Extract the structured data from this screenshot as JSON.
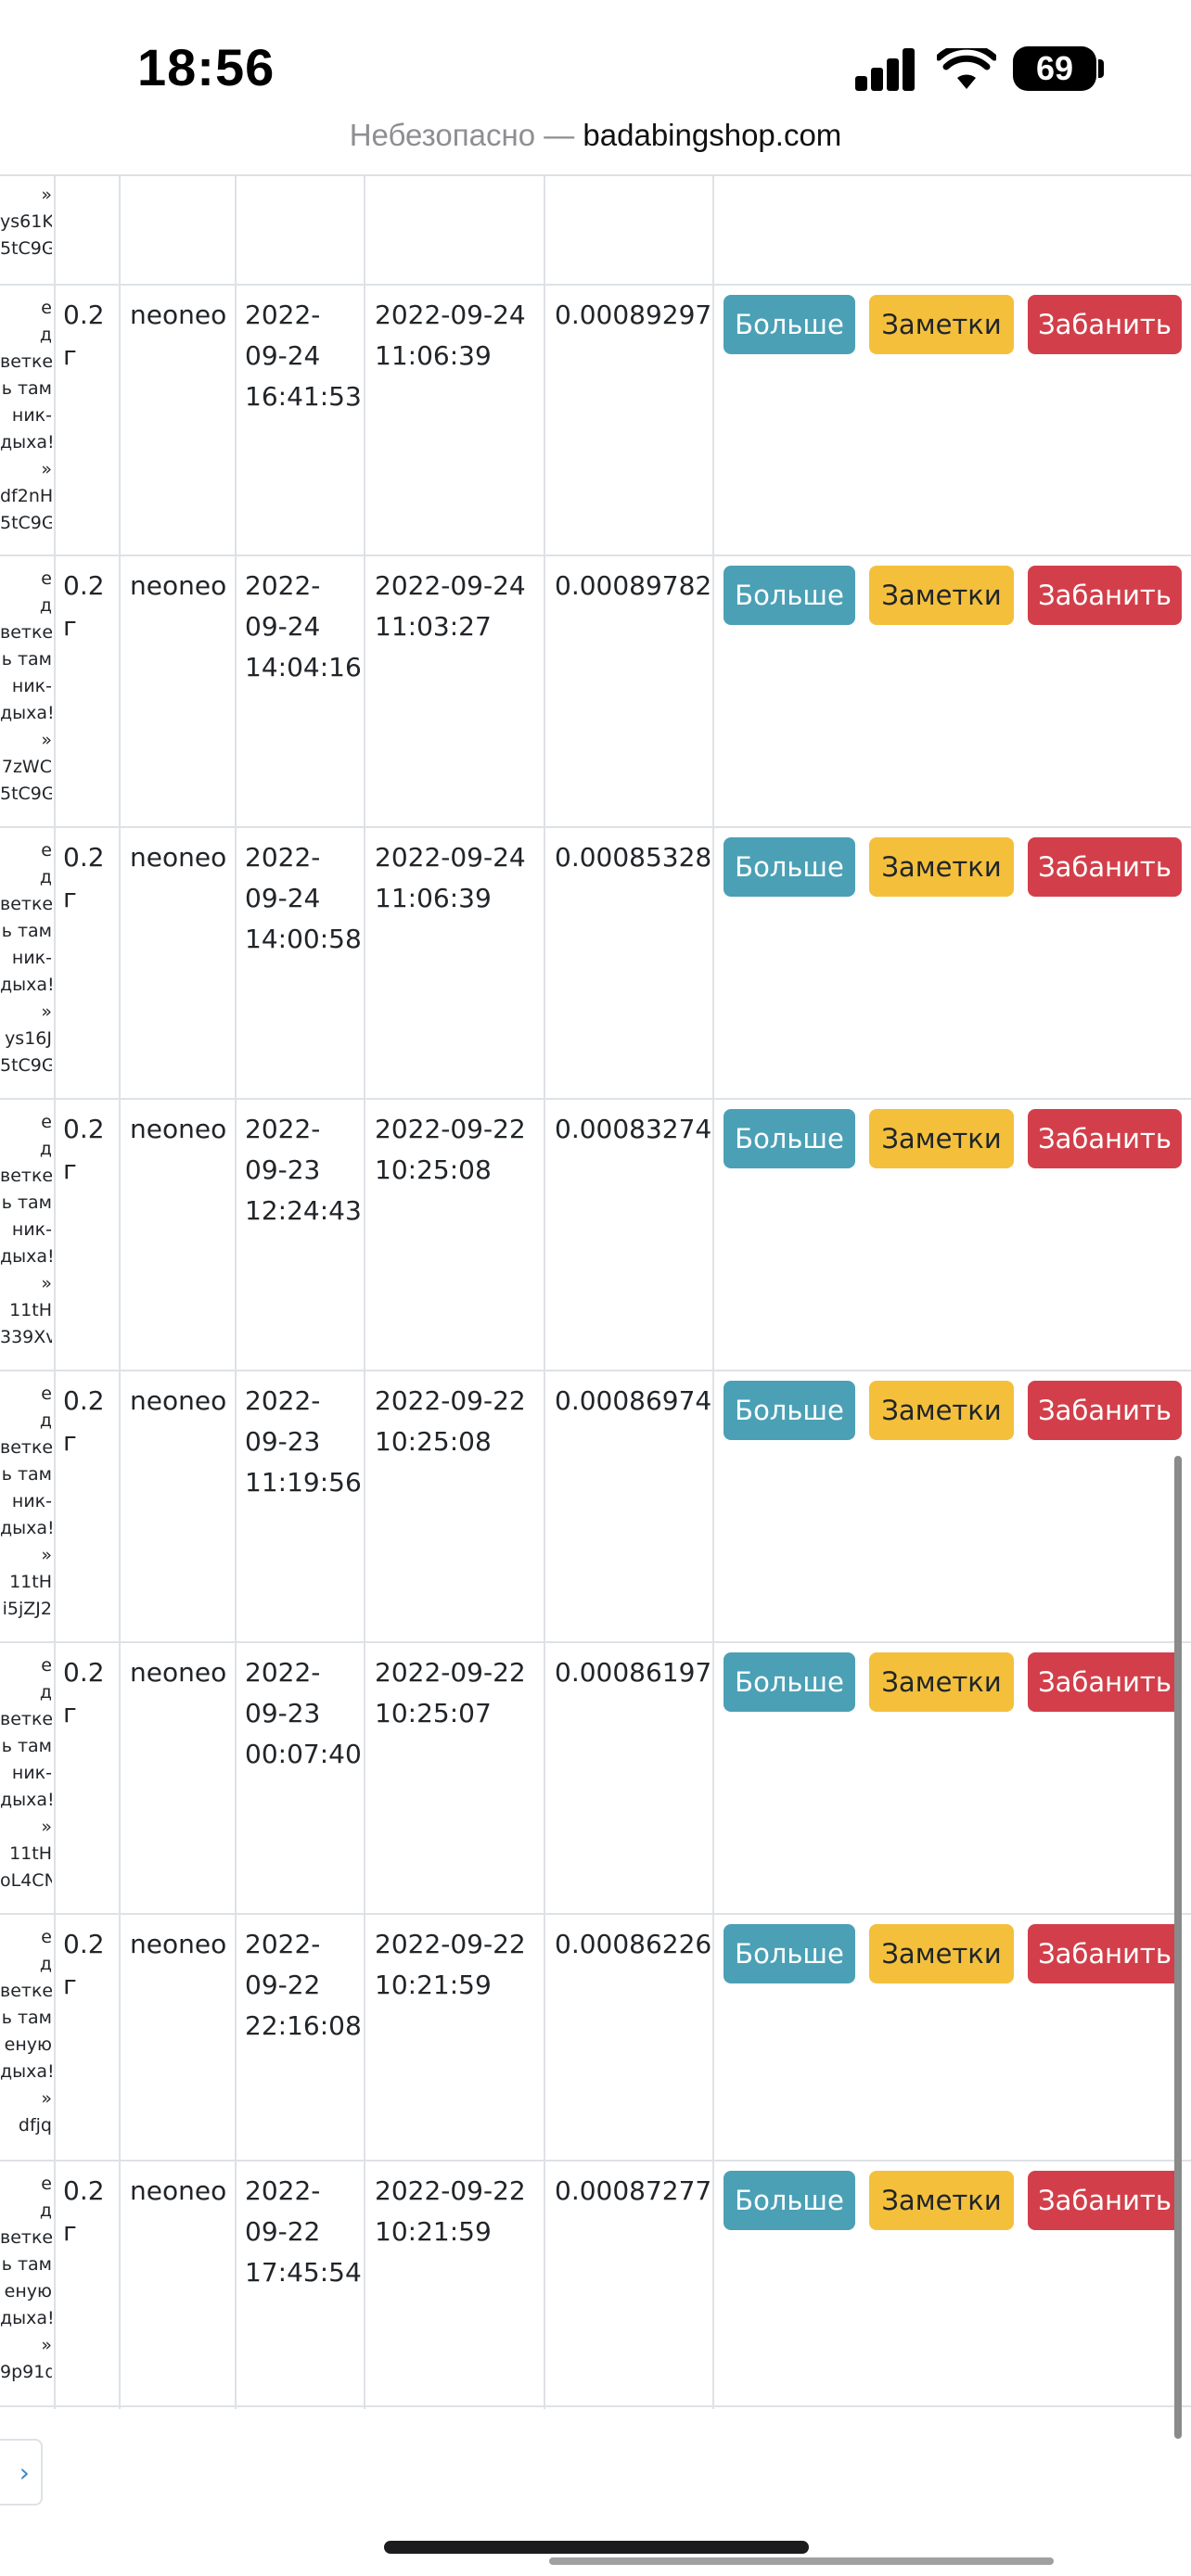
{
  "status": {
    "time": "18:56",
    "battery": "69"
  },
  "urlbar": {
    "insecure_label": "Небезопасно —",
    "host": "badabingshop.com"
  },
  "buttons": {
    "more": "Больше",
    "notes": "Заметки",
    "ban": "Забанить"
  },
  "top_partial": {
    "clip_lines": [
      "»",
      "",
      "ys61K",
      "5tC9G"
    ]
  },
  "rows": [
    {
      "clip_lines": [
        "е",
        "д",
        "ветке",
        "ь там",
        "ник-",
        "дыха!",
        "»",
        "",
        "df2nH",
        "5tC9G"
      ],
      "weight_top": "0.2",
      "weight_unit": "г",
      "user": "neoneo",
      "date1": "2022-",
      "date2": "09-24",
      "date3": "16:41:53",
      "paid_date": "2022-09-24",
      "paid_time": "11:06:39",
      "amount": "0.00089297"
    },
    {
      "clip_lines": [
        "е",
        "д",
        "ветке",
        "ь там",
        "ник-",
        "дыха!",
        "»",
        "",
        "7zWC",
        "5tC9G"
      ],
      "weight_top": "0.2",
      "weight_unit": "г",
      "user": "neoneo",
      "date1": "2022-",
      "date2": "09-24",
      "date3": "14:04:16",
      "paid_date": "2022-09-24",
      "paid_time": "11:03:27",
      "amount": "0.00089782"
    },
    {
      "clip_lines": [
        "е",
        "д",
        "ветке",
        "ь там",
        "ник-",
        "дыха!",
        "»",
        "",
        "ys16J",
        "5tC9G"
      ],
      "weight_top": "0.2",
      "weight_unit": "г",
      "user": "neoneo",
      "date1": "2022-",
      "date2": "09-24",
      "date3": "14:00:58",
      "paid_date": "2022-09-24",
      "paid_time": "11:06:39",
      "amount": "0.00085328"
    },
    {
      "clip_lines": [
        "е",
        "д",
        "ветке",
        "ь там",
        "ник-",
        "дыха!",
        "»",
        "",
        "11tH",
        "339Xv"
      ],
      "weight_top": "0.2",
      "weight_unit": "г",
      "user": "neoneo",
      "date1": "2022-",
      "date2": "09-23",
      "date3": "12:24:43",
      "paid_date": "2022-09-22",
      "paid_time": "10:25:08",
      "amount": "0.00083274"
    },
    {
      "clip_lines": [
        "е",
        "д",
        "ветке",
        "ь там",
        "ник-",
        "дыха!",
        "»",
        "",
        "11tH",
        "i5jZJ2"
      ],
      "weight_top": "0.2",
      "weight_unit": "г",
      "user": "neoneo",
      "date1": "2022-",
      "date2": "09-23",
      "date3": "11:19:56",
      "paid_date": "2022-09-22",
      "paid_time": "10:25:08",
      "amount": "0.00086974"
    },
    {
      "clip_lines": [
        "е",
        "д",
        "ветке",
        "ь там",
        "ник-",
        "дыха!",
        "»",
        "",
        "11tH",
        "oL4CN"
      ],
      "weight_top": "0.2",
      "weight_unit": "г",
      "user": "neoneo",
      "date1": "2022-",
      "date2": "09-23",
      "date3": "00:07:40",
      "paid_date": "2022-09-22",
      "paid_time": "10:25:07",
      "amount": "0.00086197"
    },
    {
      "clip_lines": [
        "е",
        "д",
        "ветке",
        "ь там",
        "еную",
        "дыха!",
        "»",
        "",
        "dfjq"
      ],
      "weight_top": "0.2",
      "weight_unit": "г",
      "user": "neoneo",
      "date1": "2022-",
      "date2": "09-22",
      "date3": "22:16:08",
      "paid_date": "2022-09-22",
      "paid_time": "10:21:59",
      "amount": "0.00086226"
    },
    {
      "clip_lines": [
        "е",
        "д",
        "ветке",
        "ь там",
        "еную",
        "дыха!",
        "»",
        "",
        "9p91q"
      ],
      "weight_top": "0.2",
      "weight_unit": "г",
      "user": "neoneo",
      "date1": "2022-",
      "date2": "09-22",
      "date3": "17:45:54",
      "paid_date": "2022-09-22",
      "paid_time": "10:21:59",
      "amount": "0.00087277"
    }
  ],
  "pager": {
    "next": "›"
  }
}
